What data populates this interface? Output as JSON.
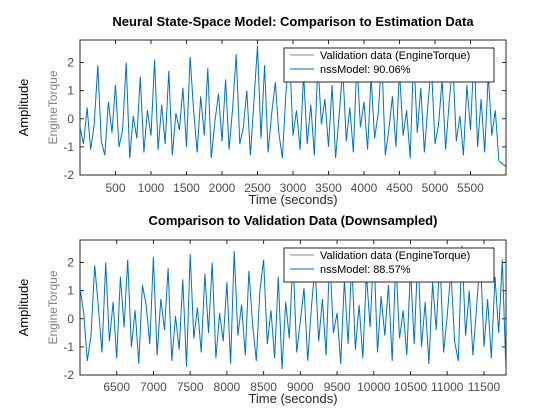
{
  "figure": {
    "ylabel_outer": "Amplitude",
    "channel_label": "EngineTorque",
    "colors": {
      "validation": "#8c8c8c",
      "model": "#0072bd",
      "axis": "#262626",
      "tick_text": "#4d4d4d"
    }
  },
  "chart_data": [
    {
      "type": "line",
      "title": "Neural State-Space Model: Comparison to Estimation Data",
      "xlabel": "Time (seconds)",
      "ylabel": "EngineTorque",
      "xlim": [
        0,
        6000
      ],
      "ylim": [
        -2,
        2.8
      ],
      "xticks": [
        "500",
        "1000",
        "1500",
        "2000",
        "2500",
        "3000",
        "3500",
        "4000",
        "4500",
        "5000",
        "5500"
      ],
      "xtick_values": [
        500,
        1000,
        1500,
        2000,
        2500,
        3000,
        3500,
        4000,
        4500,
        5000,
        5500
      ],
      "yticks": [
        "-2",
        "-1",
        "0",
        "1",
        "2"
      ],
      "ytick_values": [
        -2,
        -1,
        0,
        1,
        2
      ],
      "legend_position": "top-right",
      "series": [
        {
          "name": "Validation data (EngineTorque)",
          "color": "#8c8c8c"
        },
        {
          "name": "nssModel: 90.06%",
          "color": "#0072bd"
        }
      ],
      "x": [
        0,
        50,
        100,
        150,
        200,
        250,
        300,
        350,
        400,
        450,
        500,
        550,
        600,
        650,
        700,
        750,
        800,
        850,
        900,
        950,
        1000,
        1050,
        1100,
        1150,
        1200,
        1250,
        1300,
        1350,
        1400,
        1450,
        1500,
        1550,
        1600,
        1650,
        1700,
        1750,
        1800,
        1850,
        1900,
        1950,
        2000,
        2050,
        2100,
        2150,
        2200,
        2250,
        2300,
        2350,
        2400,
        2450,
        2500,
        2550,
        2600,
        2650,
        2700,
        2750,
        2800,
        2850,
        2900,
        2950,
        3000,
        3050,
        3100,
        3150,
        3200,
        3250,
        3300,
        3350,
        3400,
        3450,
        3500,
        3550,
        3600,
        3650,
        3700,
        3750,
        3800,
        3850,
        3900,
        3950,
        4000,
        4050,
        4100,
        4150,
        4200,
        4250,
        4300,
        4350,
        4400,
        4450,
        4500,
        4550,
        4600,
        4650,
        4700,
        4750,
        4800,
        4850,
        4900,
        4950,
        5000,
        5050,
        5100,
        5150,
        5200,
        5250,
        5300,
        5350,
        5400,
        5450,
        5500,
        5550,
        5600,
        5650,
        5700,
        5750,
        5800,
        5850,
        5900,
        5950,
        6000
      ],
      "y": [
        -0.3,
        -0.9,
        0.4,
        -1.1,
        -0.2,
        1.9,
        -0.8,
        -1.3,
        0.6,
        -0.5,
        1.2,
        -1.0,
        -0.4,
        2.0,
        -1.4,
        0.1,
        -0.7,
        1.5,
        -1.2,
        0.3,
        -0.6,
        2.1,
        -1.1,
        0.5,
        -0.9,
        1.7,
        -1.3,
        0.2,
        -0.4,
        1.1,
        -1.0,
        2.2,
        0.3,
        -1.2,
        0.8,
        -0.6,
        1.8,
        -1.4,
        -0.1,
        0.9,
        -0.8,
        1.4,
        -1.1,
        0.4,
        2.3,
        -0.9,
        -0.3,
        1.0,
        -1.3,
        0.6,
        2.6,
        -0.7,
        1.9,
        -1.2,
        0.2,
        1.3,
        -0.5,
        -1.4,
        0.9,
        2.4,
        -0.6,
        0.3,
        -1.1,
        1.6,
        -0.9,
        0.5,
        -1.3,
        2.0,
        -0.2,
        0.7,
        -1.0,
        1.2,
        -1.4,
        0.1,
        1.8,
        -0.8,
        0.4,
        -1.2,
        2.1,
        -0.3,
        0.6,
        -1.1,
        1.5,
        -0.7,
        0.2,
        2.2,
        -1.3,
        -0.4,
        0.8,
        -1.0,
        1.7,
        -0.6,
        0.3,
        -1.4,
        2.3,
        -0.5,
        1.1,
        -1.2,
        0.5,
        1.9,
        -0.9,
        -0.2,
        1.4,
        -1.1,
        0.6,
        2.0,
        -0.8,
        0.1,
        -1.3,
        1.2,
        -0.4,
        2.4,
        -1.0,
        0.7,
        -1.2,
        1.6,
        -0.6,
        0.3,
        -1.5,
        -1.6,
        -1.7
      ]
    },
    {
      "type": "line",
      "title": "Comparison to Validation Data (Downsampled)",
      "xlabel": "Time (seconds)",
      "ylabel": "EngineTorque",
      "xlim": [
        6000,
        11800
      ],
      "ylim": [
        -2,
        2.8
      ],
      "xticks": [
        "6500",
        "7000",
        "7500",
        "8000",
        "8500",
        "9000",
        "9500",
        "10000",
        "10500",
        "11000",
        "11500"
      ],
      "xtick_values": [
        6500,
        7000,
        7500,
        8000,
        8500,
        9000,
        9500,
        10000,
        10500,
        11000,
        11500
      ],
      "yticks": [
        "-2",
        "-1",
        "0",
        "1",
        "2"
      ],
      "ytick_values": [
        -2,
        -1,
        0,
        1,
        2
      ],
      "legend_position": "top-right",
      "series": [
        {
          "name": "Validation data (EngineTorque)",
          "color": "#8c8c8c"
        },
        {
          "name": "nssModel: 88.57%",
          "color": "#0072bd"
        }
      ],
      "x": [
        6000,
        6050,
        6100,
        6150,
        6200,
        6250,
        6300,
        6350,
        6400,
        6450,
        6500,
        6550,
        6600,
        6650,
        6700,
        6750,
        6800,
        6850,
        6900,
        6950,
        7000,
        7050,
        7100,
        7150,
        7200,
        7250,
        7300,
        7350,
        7400,
        7450,
        7500,
        7550,
        7600,
        7650,
        7700,
        7750,
        7800,
        7850,
        7900,
        7950,
        8000,
        8050,
        8100,
        8150,
        8200,
        8250,
        8300,
        8350,
        8400,
        8450,
        8500,
        8550,
        8600,
        8650,
        8700,
        8750,
        8800,
        8850,
        8900,
        8950,
        9000,
        9050,
        9100,
        9150,
        9200,
        9250,
        9300,
        9350,
        9400,
        9450,
        9500,
        9550,
        9600,
        9650,
        9700,
        9750,
        9800,
        9850,
        9900,
        9950,
        10000,
        10050,
        10100,
        10150,
        10200,
        10250,
        10300,
        10350,
        10400,
        10450,
        10500,
        10550,
        10600,
        10650,
        10700,
        10750,
        10800,
        10850,
        10900,
        10950,
        11000,
        11050,
        11100,
        11150,
        11200,
        11250,
        11300,
        11350,
        11400,
        11450,
        11500,
        11550,
        11600,
        11650,
        11700,
        11750,
        11800
      ],
      "y": [
        1.1,
        0.2,
        -1.5,
        -0.6,
        1.9,
        0.4,
        -1.2,
        2.0,
        -0.8,
        0.6,
        -1.4,
        1.5,
        -0.3,
        2.1,
        -1.0,
        0.3,
        -1.6,
        1.2,
        0.5,
        -0.9,
        2.2,
        -1.3,
        0.7,
        -0.4,
        1.8,
        -1.5,
        0.1,
        -1.1,
        1.4,
        -1.7,
        2.3,
        -0.7,
        0.4,
        -1.2,
        1.6,
        -0.5,
        2.0,
        -1.4,
        0.2,
        -0.8,
        1.3,
        -1.6,
        2.4,
        -0.6,
        0.5,
        -1.3,
        1.7,
        -0.2,
        -1.5,
        1.0,
        2.1,
        -0.9,
        0.3,
        -1.4,
        1.5,
        -1.8,
        0.6,
        -0.7,
        2.2,
        -1.2,
        -0.1,
        1.1,
        -1.5,
        0.4,
        1.9,
        -0.8,
        0.7,
        -1.3,
        2.3,
        -0.5,
        0.2,
        -1.6,
        1.4,
        -0.9,
        2.0,
        -1.1,
        0.5,
        -1.4,
        1.6,
        -0.3,
        2.5,
        -1.2,
        0.8,
        -0.6,
        1.2,
        -1.5,
        2.1,
        -0.7,
        0.3,
        -1.3,
        1.8,
        -0.9,
        2.4,
        -1.0,
        0.6,
        -1.6,
        1.3,
        -0.4,
        2.2,
        -1.2,
        0.1,
        1.7,
        -0.8,
        -1.5,
        2.6,
        -0.6,
        1.0,
        -1.3,
        0.4,
        2.3,
        -1.0,
        0.7,
        -1.4,
        1.5,
        -0.5,
        2.1,
        -1.9
      ]
    }
  ]
}
